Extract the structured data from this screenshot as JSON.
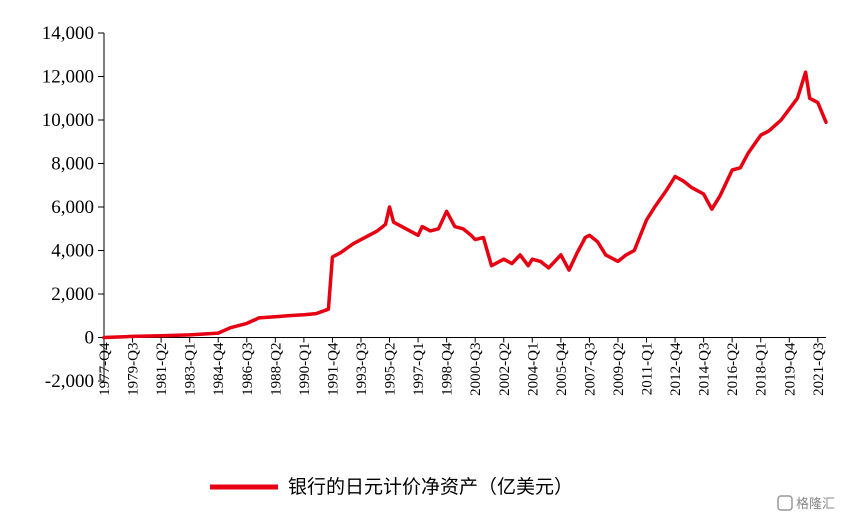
{
  "chart_data": {
    "type": "line",
    "title": "",
    "xlabel": "",
    "ylabel": "",
    "ylim": [
      -2000,
      14000
    ],
    "yticks": [
      -2000,
      0,
      2000,
      4000,
      6000,
      8000,
      10000,
      12000,
      14000
    ],
    "ytick_labels": [
      "-2,000",
      "0",
      "2,000",
      "4,000",
      "6,000",
      "8,000",
      "10,000",
      "12,000",
      "14,000"
    ],
    "xtick_labels": [
      "1977-Q4",
      "1979-Q3",
      "1981-Q2",
      "1983-Q1",
      "1984-Q4",
      "1986-Q3",
      "1988-Q2",
      "1990-Q1",
      "1991-Q4",
      "1993-Q3",
      "1995-Q2",
      "1997-Q1",
      "1998-Q4",
      "2000-Q3",
      "2002-Q2",
      "2004-Q1",
      "2005-Q4",
      "2007-Q3",
      "2009-Q2",
      "2011-Q1",
      "2012-Q4",
      "2014-Q3",
      "2016-Q2",
      "2018-Q1",
      "2019-Q4",
      "2021-Q3"
    ],
    "grid": false,
    "legend_position": "bottom",
    "series": [
      {
        "name": "银行的日元计价净资产（亿美元）",
        "color": "#e60012",
        "x": [
          "1977-Q4",
          "1979-Q3",
          "1981-Q2",
          "1983-Q1",
          "1984-Q4",
          "1985-Q3",
          "1986-Q3",
          "1987-Q2",
          "1988-Q2",
          "1989-Q1",
          "1990-Q1",
          "1990-Q4",
          "1991-Q3",
          "1991-Q4",
          "1992-Q2",
          "1993-Q1",
          "1993-Q3",
          "1994-Q1",
          "1994-Q3",
          "1995-Q1",
          "1995-Q2",
          "1995-Q3",
          "1996-Q1",
          "1996-Q3",
          "1997-Q1",
          "1997-Q2",
          "1997-Q4",
          "1998-Q2",
          "1998-Q4",
          "1999-Q2",
          "1999-Q4",
          "2000-Q2",
          "2000-Q3",
          "2001-Q1",
          "2001-Q3",
          "2002-Q2",
          "2002-Q4",
          "2003-Q2",
          "2003-Q4",
          "2004-Q1",
          "2004-Q3",
          "2005-Q1",
          "2005-Q4",
          "2006-Q2",
          "2006-Q4",
          "2007-Q2",
          "2007-Q3",
          "2008-Q1",
          "2008-Q3",
          "2009-Q2",
          "2009-Q4",
          "2010-Q2",
          "2011-Q1",
          "2011-Q3",
          "2012-Q2",
          "2012-Q4",
          "2013-Q2",
          "2013-Q4",
          "2014-Q3",
          "2015-Q1",
          "2015-Q3",
          "2016-Q2",
          "2016-Q4",
          "2017-Q2",
          "2018-Q1",
          "2018-Q3",
          "2019-Q2",
          "2019-Q4",
          "2020-Q2",
          "2020-Q4",
          "2021-Q1",
          "2021-Q3",
          "2022-Q1"
        ],
        "values": [
          0,
          50,
          80,
          120,
          200,
          450,
          650,
          900,
          950,
          1000,
          1050,
          1100,
          1300,
          3700,
          3900,
          4300,
          4500,
          4700,
          4900,
          5200,
          6000,
          5300,
          5100,
          4900,
          4700,
          5100,
          4900,
          5000,
          5800,
          5100,
          5000,
          4700,
          4500,
          4600,
          3300,
          3600,
          3400,
          3800,
          3300,
          3600,
          3500,
          3200,
          3800,
          3100,
          3900,
          4600,
          4700,
          4400,
          3800,
          3500,
          3800,
          4000,
          5400,
          6000,
          6800,
          7400,
          7200,
          6900,
          6600,
          5900,
          6500,
          7700,
          7800,
          8500,
          9300,
          9500,
          10000,
          10500,
          11000,
          12200,
          11000,
          10800,
          9900
        ]
      }
    ]
  },
  "watermark": {
    "text": "格隆汇"
  }
}
